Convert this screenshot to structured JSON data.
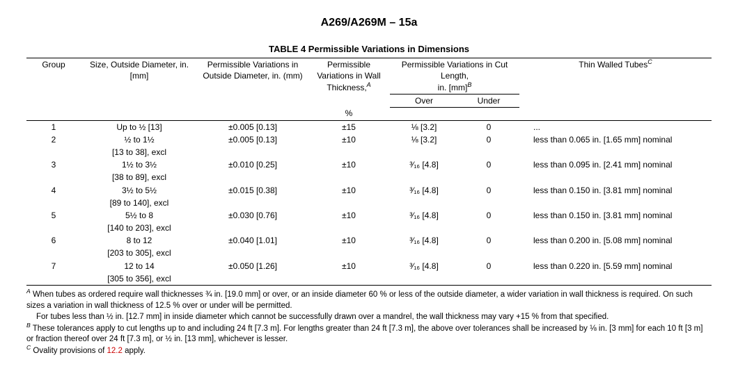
{
  "doc_title": "A269/A269M – 15a",
  "table_caption": "TABLE 4 Permissible Variations in Dimensions",
  "headers": {
    "group": "Group",
    "size": "Size, Outside Diameter, in. [mm]",
    "perm_od": "Permissible Variations in Outside Diameter, in. (mm)",
    "perm_wall_l1": "Permissible Variations in Wall",
    "perm_wall_l2": "Thickness,",
    "perm_wall_sup": "A",
    "perm_wall_unit": "%",
    "perm_cut_l1": "Permissible Variations in Cut",
    "perm_cut_l2": "Length,",
    "perm_cut_l3": "in. [mm]",
    "perm_cut_sup": "B",
    "over": "Over",
    "under": "Under",
    "thin": "Thin Walled Tubes",
    "thin_sup": "C"
  },
  "rows": [
    {
      "group": "1",
      "size_main": "Up to ½ [13]",
      "size_sub": "",
      "od": "±0.005 [0.13]",
      "wall": "±15",
      "over": "⅛ [3.2]",
      "under": "0",
      "thin": "..."
    },
    {
      "group": "2",
      "size_main": "½ to 1½",
      "size_sub": "[13 to 38], excl",
      "od": "±0.005 [0.13]",
      "wall": "±10",
      "over": "⅛ [3.2]",
      "under": "0",
      "thin": "less than 0.065 in. [1.65 mm] nominal"
    },
    {
      "group": "3",
      "size_main": "1½ to 3½",
      "size_sub": "[38 to 89], excl",
      "od": "±0.010 [0.25]",
      "wall": "±10",
      "over": "³⁄₁₆ [4.8]",
      "under": "0",
      "thin": "less than 0.095 in. [2.41 mm] nominal"
    },
    {
      "group": "4",
      "size_main": "3½ to 5½",
      "size_sub": "[89 to 140], excl",
      "od": "±0.015 [0.38]",
      "wall": "±10",
      "over": "³⁄₁₆ [4.8]",
      "under": "0",
      "thin": "less than 0.150 in. [3.81 mm] nominal"
    },
    {
      "group": "5",
      "size_main": "5½ to 8",
      "size_sub": "[140 to 203], excl",
      "od": "±0.030 [0.76]",
      "wall": "±10",
      "over": "³⁄₁₆ [4.8]",
      "under": "0",
      "thin": "less than 0.150 in. [3.81 mm] nominal"
    },
    {
      "group": "6",
      "size_main": "8 to 12",
      "size_sub": "[203 to 305], excl",
      "od": "±0.040 [1.01]",
      "wall": "±10",
      "over": "³⁄₁₆ [4.8]",
      "under": "0",
      "thin": "less than 0.200 in. [5.08 mm] nominal"
    },
    {
      "group": "7",
      "size_main": "12 to 14",
      "size_sub": "[305 to 356], excl",
      "od": "±0.050 [1.26]",
      "wall": "±10",
      "over": "³⁄₁₆ [4.8]",
      "under": "0",
      "thin": "less than 0.220 in. [5.59 mm] nominal"
    }
  ],
  "notes": {
    "A_sup": "A",
    "A_text": " When tubes as ordered require wall thicknesses ¾ in. [19.0 mm] or over, or an inside diameter 60 % or less of the outside diameter, a wider variation in wall thickness is required. On such sizes a variation in wall thickness of 12.5 % over or under will be permitted.",
    "A2_text": "For tubes less than ½ in. [12.7 mm] in inside diameter which cannot be successfully drawn over a mandrel, the wall thickness may vary +15 % from that specified.",
    "B_sup": "B",
    "B_text": " These tolerances apply to cut lengths up to and including 24 ft [7.3 m]. For lengths greater than 24 ft [7.3 m], the above over tolerances shall be increased by ⅛ in. [3 mm] for each 10 ft [3 m] or fraction thereof over 24 ft [7.3 m], or ½  in. [13 mm], whichever is lesser.",
    "C_sup": "C",
    "C_pre": " Ovality provisions of ",
    "C_link": "12.2",
    "C_post": " apply."
  }
}
